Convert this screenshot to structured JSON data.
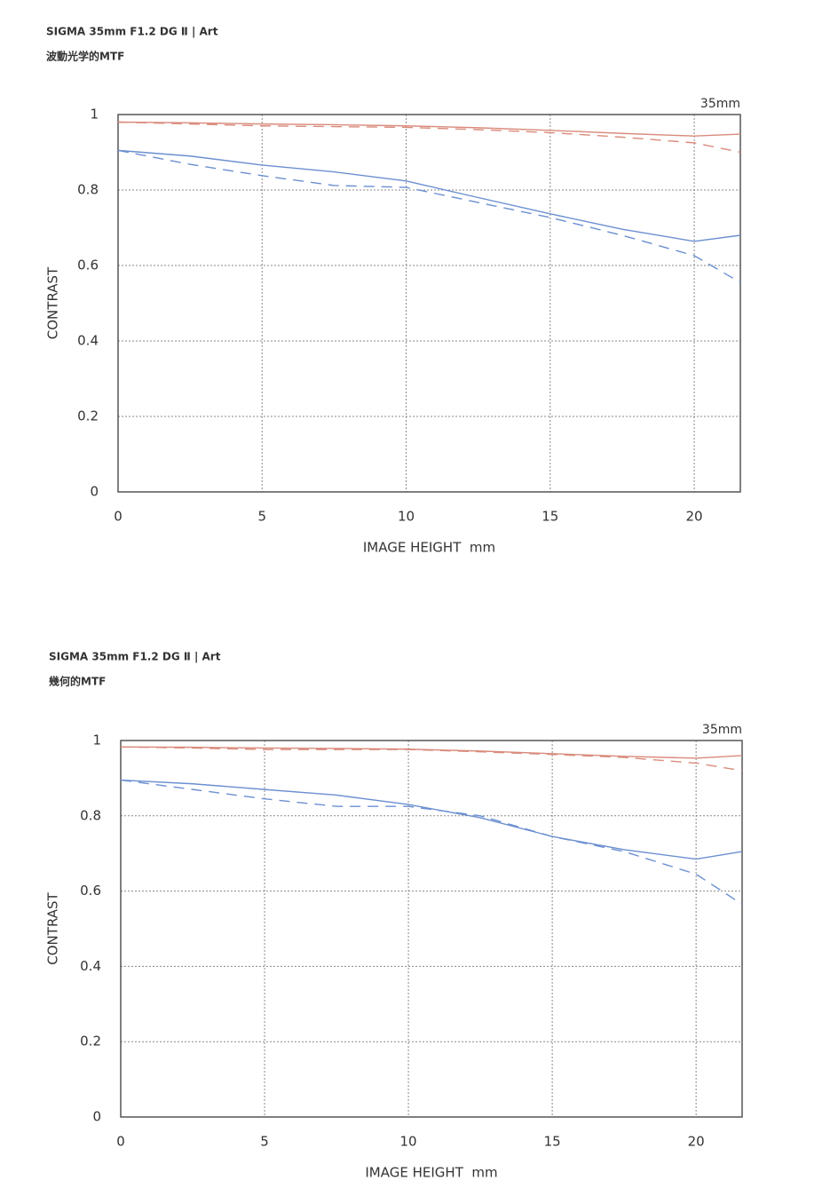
{
  "chart_data": [
    {
      "type": "line",
      "title": "SIGMA 35mm F1.2 DG Ⅱ | Art",
      "subtitle": "波動光学的MTF",
      "annotation": "35mm",
      "x_label": "IMAGE HEIGHT  mm",
      "y_label": "CONTRAST",
      "xlim": [
        0,
        21.6
      ],
      "ylim": [
        0,
        1
      ],
      "xticks": [
        0,
        5,
        10,
        15,
        20
      ],
      "yticks": [
        0,
        0.2,
        0.4,
        0.6,
        0.8,
        1
      ],
      "grid": true,
      "x": [
        0,
        2.5,
        5,
        7.5,
        10,
        12.5,
        15,
        17.5,
        20,
        21.6
      ],
      "series": [
        {
          "color": "#d98b7c",
          "dashed": false,
          "values": [
            0.98,
            0.978,
            0.975,
            0.973,
            0.97,
            0.965,
            0.958,
            0.95,
            0.943,
            0.948
          ]
        },
        {
          "color": "#d98b7c",
          "dashed": true,
          "values": [
            0.98,
            0.975,
            0.97,
            0.968,
            0.966,
            0.96,
            0.952,
            0.94,
            0.925,
            0.9
          ]
        },
        {
          "color": "#6b8fd1",
          "dashed": false,
          "values": [
            0.905,
            0.89,
            0.866,
            0.848,
            0.824,
            0.78,
            0.737,
            0.696,
            0.664,
            0.68
          ]
        },
        {
          "color": "#6b8fd1",
          "dashed": true,
          "values": [
            0.905,
            0.868,
            0.838,
            0.812,
            0.807,
            0.767,
            0.727,
            0.68,
            0.626,
            0.555
          ]
        }
      ]
    },
    {
      "type": "line",
      "title": "SIGMA 35mm F1.2 DG Ⅱ | Art",
      "subtitle": "幾何的MTF",
      "annotation": "35mm",
      "x_label": "IMAGE HEIGHT  mm",
      "y_label": "CONTRAST",
      "xlim": [
        0,
        21.6
      ],
      "ylim": [
        0,
        1
      ],
      "xticks": [
        0,
        5,
        10,
        15,
        20
      ],
      "yticks": [
        0,
        0.2,
        0.4,
        0.6,
        0.8,
        1
      ],
      "grid": true,
      "x": [
        0,
        2.5,
        5,
        7.5,
        10,
        12.5,
        15,
        17.5,
        20,
        21.6
      ],
      "series": [
        {
          "color": "#d98b7c",
          "dashed": false,
          "values": [
            0.983,
            0.982,
            0.98,
            0.979,
            0.977,
            0.972,
            0.965,
            0.958,
            0.953,
            0.96
          ]
        },
        {
          "color": "#d98b7c",
          "dashed": true,
          "values": [
            0.983,
            0.98,
            0.976,
            0.976,
            0.976,
            0.97,
            0.963,
            0.955,
            0.94,
            0.92
          ]
        },
        {
          "color": "#6b8fd1",
          "dashed": false,
          "values": [
            0.895,
            0.885,
            0.87,
            0.855,
            0.83,
            0.795,
            0.745,
            0.71,
            0.685,
            0.705
          ]
        },
        {
          "color": "#6b8fd1",
          "dashed": true,
          "values": [
            0.895,
            0.87,
            0.845,
            0.825,
            0.825,
            0.8,
            0.745,
            0.705,
            0.645,
            0.565
          ]
        }
      ]
    }
  ]
}
